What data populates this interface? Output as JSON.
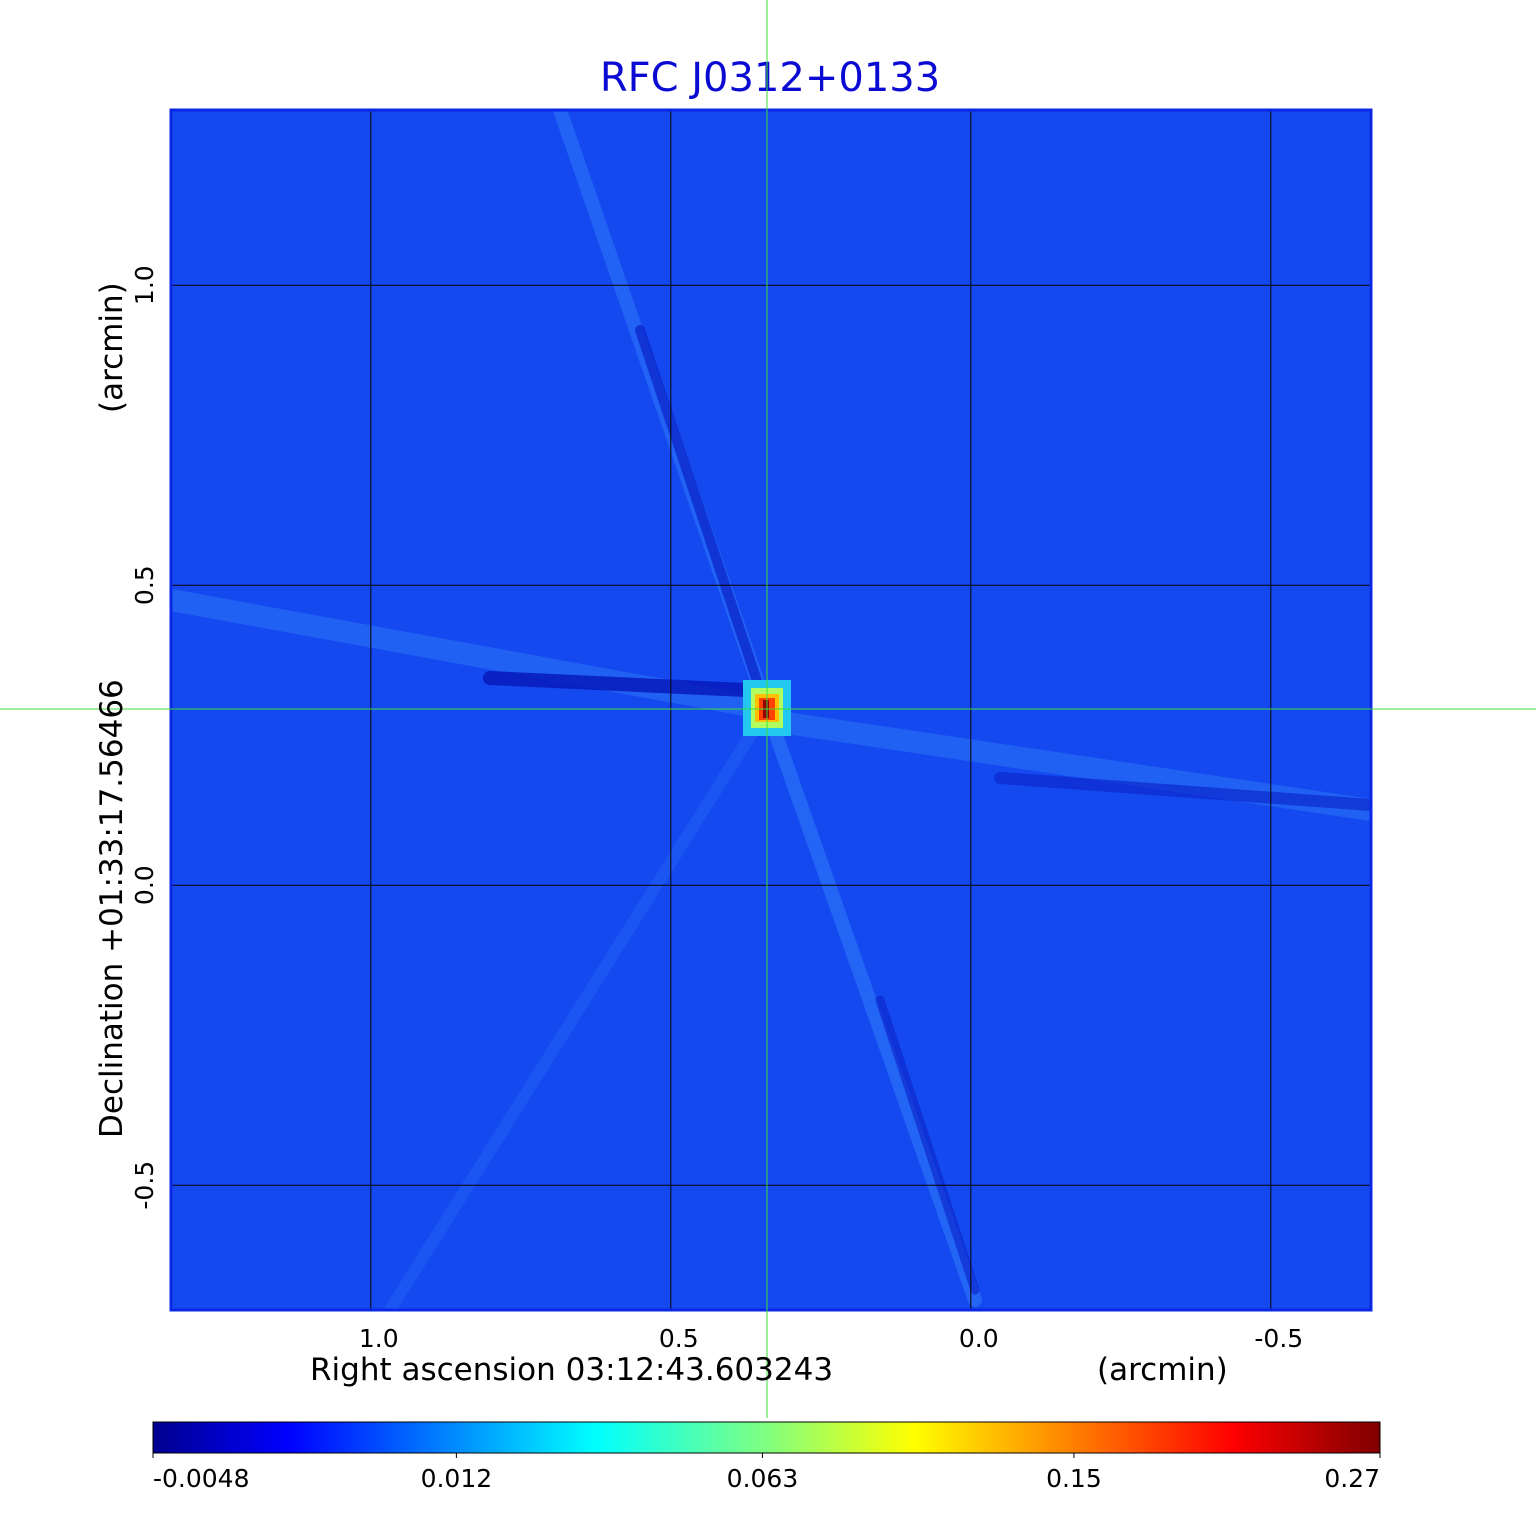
{
  "chart_data": {
    "type": "image",
    "title": "RFC J0312+0133",
    "xlabel": "Right ascension  03:12:43.603243",
    "xunit": "(arcmin)",
    "ylabel": "Declination  +01:33:17.56466",
    "yunit": "(arcmin)",
    "xlim": [
      1.333,
      -0.667
    ],
    "ylim": [
      -0.708,
      1.292
    ],
    "xticks": [
      {
        "value": 1.0,
        "label": "1.0"
      },
      0.5,
      {
        "value": 0.0,
        "label": "0.0"
      },
      -0.5
    ],
    "yticks": [
      {
        "value": 1.0,
        "label": "1.0"
      },
      0.5,
      {
        "value": 0.0,
        "label": "0.0"
      },
      -0.5
    ],
    "grid": true,
    "colorbar": {
      "scale": "sqrt",
      "clim": [
        -0.0048,
        0.27
      ],
      "ticks": [
        -0.0048,
        0.012,
        0.063,
        0.15,
        0.27
      ]
    }
  }
}
